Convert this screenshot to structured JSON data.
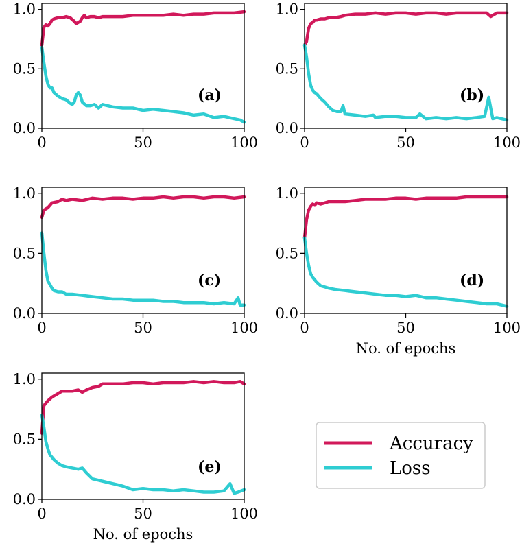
{
  "figure": {
    "legend": {
      "entries": [
        {
          "label": "Accuracy",
          "color": "#d1185a"
        },
        {
          "label": "Loss",
          "color": "#2fcdd2"
        }
      ],
      "placement": "lower-right (empty sixth panel slot)"
    },
    "colors": {
      "accuracy": "#d1185a",
      "loss": "#2fcdd2"
    }
  },
  "chart_data": [
    {
      "type": "line",
      "panel_label": "(a)",
      "xlim": [
        0,
        100
      ],
      "ylim": [
        0,
        1.05
      ],
      "xticks": [
        "0",
        "50",
        "100"
      ],
      "yticks": [
        "0.0",
        "0.5",
        "1.0"
      ],
      "xlabel": "",
      "ylabel": "",
      "series": [
        {
          "name": "Accuracy",
          "x": [
            0,
            1,
            2,
            3,
            4,
            5,
            6,
            8,
            10,
            12,
            14,
            16,
            17,
            18,
            19,
            20,
            21,
            22,
            24,
            26,
            28,
            30,
            35,
            40,
            45,
            50,
            55,
            60,
            65,
            70,
            75,
            80,
            85,
            90,
            95,
            100
          ],
          "values": [
            0.7,
            0.85,
            0.87,
            0.86,
            0.88,
            0.91,
            0.92,
            0.93,
            0.93,
            0.94,
            0.93,
            0.9,
            0.88,
            0.89,
            0.9,
            0.93,
            0.95,
            0.93,
            0.94,
            0.94,
            0.93,
            0.94,
            0.94,
            0.94,
            0.95,
            0.95,
            0.95,
            0.95,
            0.96,
            0.95,
            0.96,
            0.96,
            0.97,
            0.97,
            0.97,
            0.98
          ]
        },
        {
          "name": "Loss",
          "x": [
            0,
            1,
            2,
            3,
            4,
            5,
            6,
            8,
            10,
            12,
            14,
            15,
            16,
            17,
            18,
            19,
            20,
            22,
            24,
            26,
            28,
            30,
            35,
            40,
            45,
            50,
            55,
            60,
            65,
            70,
            75,
            80,
            85,
            90,
            95,
            98,
            100
          ],
          "values": [
            0.68,
            0.55,
            0.44,
            0.37,
            0.34,
            0.34,
            0.3,
            0.27,
            0.25,
            0.24,
            0.21,
            0.2,
            0.22,
            0.28,
            0.3,
            0.28,
            0.22,
            0.19,
            0.19,
            0.2,
            0.17,
            0.2,
            0.18,
            0.17,
            0.17,
            0.15,
            0.16,
            0.15,
            0.14,
            0.13,
            0.11,
            0.12,
            0.09,
            0.1,
            0.08,
            0.07,
            0.05
          ]
        }
      ]
    },
    {
      "type": "line",
      "panel_label": "(b)",
      "xlim": [
        0,
        100
      ],
      "ylim": [
        0,
        1.05
      ],
      "xticks": [
        "0",
        "50",
        "100"
      ],
      "yticks": [
        "0.0",
        "0.5",
        "1.0"
      ],
      "xlabel": "",
      "ylabel": "",
      "series": [
        {
          "name": "Accuracy",
          "x": [
            0,
            1,
            2,
            3,
            4,
            5,
            6,
            8,
            10,
            12,
            15,
            18,
            20,
            25,
            30,
            35,
            40,
            45,
            50,
            55,
            60,
            65,
            70,
            75,
            80,
            85,
            90,
            92,
            95,
            100
          ],
          "values": [
            0.7,
            0.73,
            0.84,
            0.88,
            0.89,
            0.91,
            0.91,
            0.92,
            0.92,
            0.93,
            0.93,
            0.94,
            0.95,
            0.96,
            0.96,
            0.97,
            0.96,
            0.97,
            0.97,
            0.96,
            0.97,
            0.97,
            0.96,
            0.97,
            0.97,
            0.97,
            0.97,
            0.94,
            0.97,
            0.97
          ]
        },
        {
          "name": "Loss",
          "x": [
            0,
            1,
            2,
            3,
            4,
            5,
            6,
            8,
            10,
            12,
            14,
            16,
            18,
            19,
            20,
            25,
            30,
            34,
            35,
            40,
            45,
            50,
            55,
            57,
            60,
            65,
            70,
            75,
            80,
            85,
            89,
            91,
            92,
            93,
            95,
            100
          ],
          "values": [
            0.7,
            0.6,
            0.46,
            0.36,
            0.32,
            0.3,
            0.29,
            0.25,
            0.22,
            0.18,
            0.15,
            0.14,
            0.14,
            0.19,
            0.12,
            0.11,
            0.1,
            0.11,
            0.09,
            0.1,
            0.1,
            0.09,
            0.09,
            0.12,
            0.08,
            0.09,
            0.08,
            0.09,
            0.08,
            0.09,
            0.1,
            0.26,
            0.17,
            0.08,
            0.09,
            0.07
          ]
        }
      ]
    },
    {
      "type": "line",
      "panel_label": "(c)",
      "xlim": [
        0,
        100
      ],
      "ylim": [
        0,
        1.05
      ],
      "xticks": [
        "0",
        "50",
        "100"
      ],
      "yticks": [
        "0.0",
        "0.5",
        "1.0"
      ],
      "xlabel": "",
      "ylabel": "",
      "series": [
        {
          "name": "Accuracy",
          "x": [
            0,
            1,
            2,
            3,
            5,
            8,
            10,
            12,
            15,
            20,
            25,
            30,
            35,
            40,
            45,
            50,
            55,
            60,
            65,
            70,
            75,
            80,
            85,
            90,
            95,
            100
          ],
          "values": [
            0.8,
            0.86,
            0.87,
            0.88,
            0.92,
            0.93,
            0.95,
            0.94,
            0.95,
            0.94,
            0.96,
            0.95,
            0.96,
            0.96,
            0.95,
            0.96,
            0.96,
            0.97,
            0.96,
            0.97,
            0.97,
            0.96,
            0.97,
            0.97,
            0.96,
            0.97
          ]
        },
        {
          "name": "Loss",
          "x": [
            0,
            1,
            2,
            3,
            4,
            5,
            6,
            8,
            10,
            12,
            15,
            20,
            25,
            30,
            35,
            40,
            45,
            50,
            55,
            60,
            65,
            70,
            75,
            80,
            85,
            90,
            95,
            97,
            98,
            100
          ],
          "values": [
            0.67,
            0.5,
            0.36,
            0.27,
            0.24,
            0.21,
            0.19,
            0.18,
            0.18,
            0.16,
            0.16,
            0.15,
            0.14,
            0.13,
            0.12,
            0.12,
            0.11,
            0.11,
            0.11,
            0.1,
            0.1,
            0.09,
            0.09,
            0.09,
            0.08,
            0.09,
            0.08,
            0.13,
            0.07,
            0.07
          ]
        }
      ]
    },
    {
      "type": "line",
      "panel_label": "(d)",
      "xlim": [
        0,
        100
      ],
      "ylim": [
        0,
        1.05
      ],
      "xticks": [
        "0",
        "50",
        "100"
      ],
      "yticks": [
        "0.0",
        "0.5",
        "1.0"
      ],
      "xlabel": "No. of epochs",
      "ylabel": "",
      "series": [
        {
          "name": "Accuracy",
          "x": [
            0,
            1,
            2,
            3,
            4,
            5,
            6,
            8,
            10,
            12,
            15,
            20,
            25,
            30,
            35,
            40,
            45,
            50,
            55,
            60,
            65,
            70,
            75,
            80,
            85,
            90,
            95,
            100
          ],
          "values": [
            0.63,
            0.78,
            0.86,
            0.89,
            0.91,
            0.9,
            0.92,
            0.91,
            0.92,
            0.93,
            0.93,
            0.93,
            0.94,
            0.95,
            0.95,
            0.95,
            0.96,
            0.96,
            0.95,
            0.96,
            0.96,
            0.96,
            0.96,
            0.97,
            0.97,
            0.97,
            0.97,
            0.97
          ]
        },
        {
          "name": "Loss",
          "x": [
            0,
            1,
            2,
            3,
            4,
            5,
            6,
            8,
            10,
            12,
            15,
            20,
            25,
            30,
            35,
            40,
            45,
            50,
            55,
            60,
            65,
            70,
            75,
            80,
            85,
            90,
            95,
            100
          ],
          "values": [
            0.63,
            0.5,
            0.4,
            0.33,
            0.3,
            0.28,
            0.26,
            0.23,
            0.22,
            0.21,
            0.2,
            0.19,
            0.18,
            0.17,
            0.16,
            0.15,
            0.15,
            0.14,
            0.15,
            0.13,
            0.13,
            0.12,
            0.11,
            0.1,
            0.09,
            0.08,
            0.08,
            0.06
          ]
        }
      ]
    },
    {
      "type": "line",
      "panel_label": "(e)",
      "xlim": [
        0,
        100
      ],
      "ylim": [
        0,
        1.05
      ],
      "xticks": [
        "0",
        "50",
        "100"
      ],
      "yticks": [
        "0.0",
        "0.5",
        "1.0"
      ],
      "xlabel": "No. of epochs",
      "ylabel": "",
      "series": [
        {
          "name": "Accuracy",
          "x": [
            0,
            1,
            2,
            3,
            5,
            8,
            10,
            12,
            15,
            18,
            20,
            22,
            25,
            28,
            30,
            35,
            40,
            45,
            50,
            55,
            60,
            65,
            70,
            75,
            80,
            85,
            90,
            95,
            98,
            100
          ],
          "values": [
            0.55,
            0.78,
            0.8,
            0.82,
            0.85,
            0.88,
            0.9,
            0.9,
            0.9,
            0.91,
            0.89,
            0.91,
            0.93,
            0.94,
            0.96,
            0.96,
            0.96,
            0.97,
            0.97,
            0.96,
            0.97,
            0.97,
            0.97,
            0.98,
            0.97,
            0.98,
            0.97,
            0.97,
            0.98,
            0.96
          ]
        },
        {
          "name": "Loss",
          "x": [
            0,
            1,
            2,
            3,
            4,
            5,
            6,
            8,
            10,
            12,
            15,
            18,
            20,
            22,
            25,
            30,
            35,
            40,
            45,
            50,
            55,
            60,
            65,
            70,
            75,
            80,
            85,
            90,
            93,
            95,
            97,
            100
          ],
          "values": [
            0.7,
            0.6,
            0.48,
            0.42,
            0.37,
            0.35,
            0.33,
            0.3,
            0.28,
            0.27,
            0.26,
            0.25,
            0.26,
            0.22,
            0.17,
            0.15,
            0.13,
            0.11,
            0.08,
            0.09,
            0.08,
            0.08,
            0.07,
            0.08,
            0.07,
            0.06,
            0.06,
            0.07,
            0.13,
            0.05,
            0.06,
            0.08
          ]
        }
      ]
    }
  ]
}
